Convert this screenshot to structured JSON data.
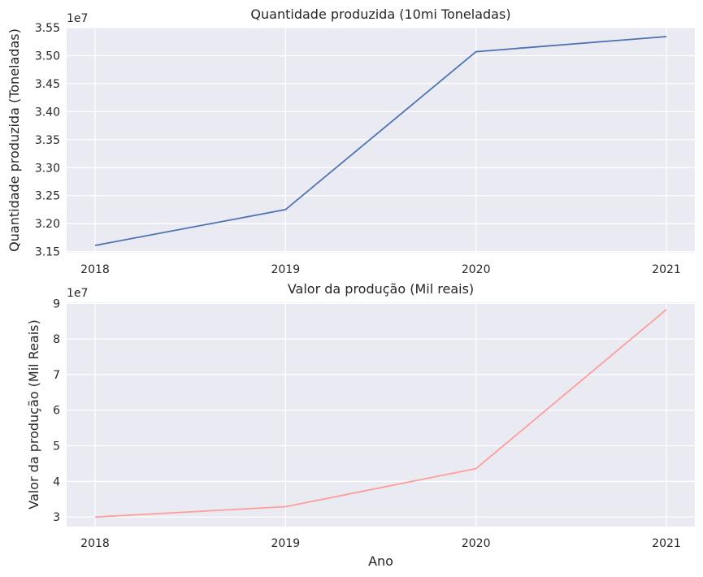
{
  "chart_data": [
    {
      "type": "line",
      "title": "Quantidade produzida (10mi Toneladas)",
      "xlabel": "",
      "ylabel": "Quantidade produzida (Toneladas)",
      "offset_label": "1e7",
      "x": [
        2018,
        2019,
        2020,
        2021
      ],
      "x_tick_labels": [
        "2018",
        "2019",
        "2020",
        "2021"
      ],
      "series": [
        {
          "values": [
            3.161,
            3.225,
            3.507,
            3.534
          ],
          "color": "#4c72b0"
        }
      ],
      "ylim": [
        3.148,
        3.55
      ],
      "y_ticks": [
        3.15,
        3.2,
        3.25,
        3.3,
        3.35,
        3.4,
        3.45,
        3.5,
        3.55
      ],
      "y_tick_labels": [
        "3.15",
        "3.20",
        "3.25",
        "3.30",
        "3.35",
        "3.40",
        "3.45",
        "3.50",
        "3.55"
      ],
      "grid": true,
      "background": "#eaeaf2"
    },
    {
      "type": "line",
      "title": "Valor da produção (Mil reais)",
      "xlabel": "Ano",
      "ylabel": "Valor da produção (Mil Reais)",
      "offset_label": "1e7",
      "x": [
        2018,
        2019,
        2020,
        2021
      ],
      "x_tick_labels": [
        "2018",
        "2019",
        "2020",
        "2021"
      ],
      "series": [
        {
          "values": [
            3.0,
            3.29,
            4.36,
            8.83
          ],
          "color": "#ff9d9a"
        }
      ],
      "ylim": [
        2.73,
        9.03
      ],
      "y_ticks": [
        3,
        4,
        5,
        6,
        7,
        8,
        9
      ],
      "y_tick_labels": [
        "3",
        "4",
        "5",
        "6",
        "7",
        "8",
        "9"
      ],
      "grid": true,
      "background": "#eaeaf2"
    }
  ]
}
